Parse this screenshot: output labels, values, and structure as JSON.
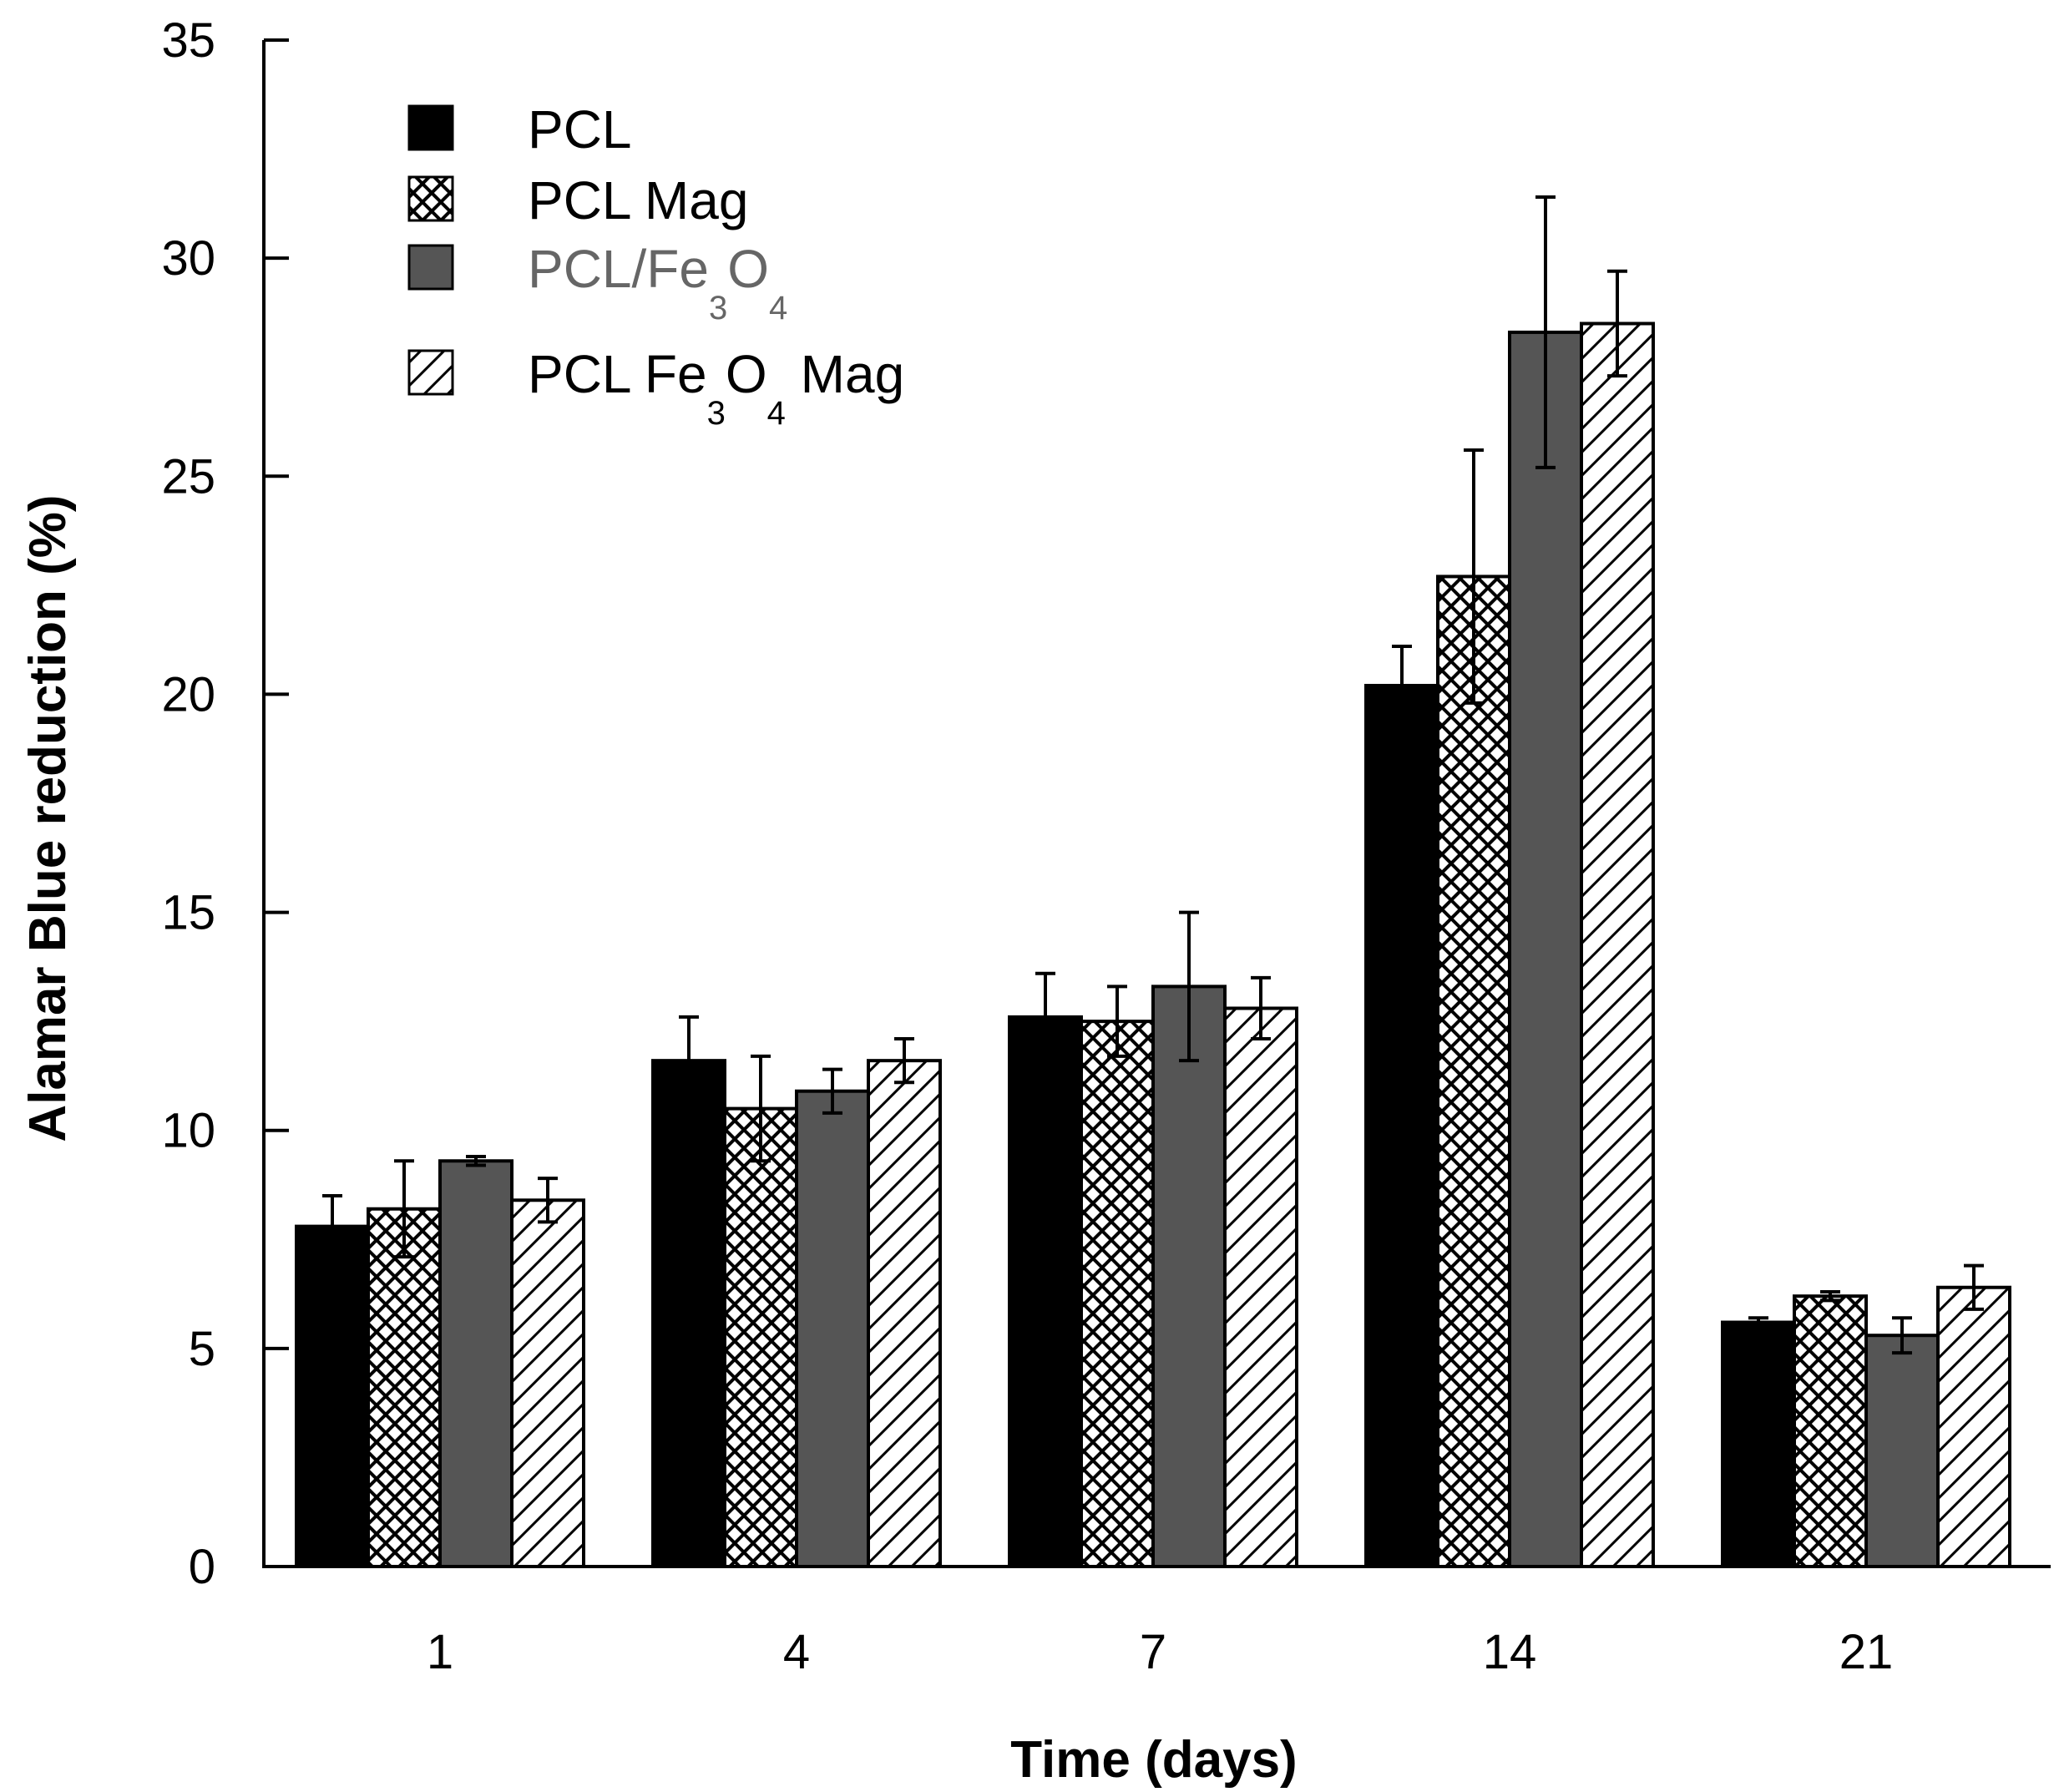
{
  "chart_data": {
    "type": "bar",
    "title": "",
    "xlabel": "Time (days)",
    "ylabel": "Alamar Blue reduction (%)",
    "ylim": [
      0,
      35
    ],
    "yticks": [
      "0",
      "5",
      "10",
      "15",
      "20",
      "25",
      "30",
      "35"
    ],
    "categories": [
      "1",
      "4",
      "7",
      "14",
      "21"
    ],
    "grid": false,
    "legend_position": "top-left",
    "series": [
      {
        "name": "PCL",
        "pattern": "solid-black",
        "color": "#000000",
        "values": [
          7.8,
          11.6,
          12.6,
          20.2,
          5.6
        ],
        "errors": [
          0.7,
          1.0,
          1.0,
          0.9,
          0.1
        ]
      },
      {
        "name": "PCL Mag",
        "pattern": "crosshatch",
        "color": "#000000",
        "values": [
          8.2,
          10.5,
          12.5,
          22.7,
          6.2
        ],
        "errors": [
          1.1,
          1.2,
          0.8,
          2.9,
          0.1
        ]
      },
      {
        "name": "PCL/Fe3O4",
        "pattern": "solid-gray",
        "color": "#555555",
        "values": [
          9.3,
          10.9,
          13.3,
          28.3,
          5.3
        ],
        "errors": [
          0.1,
          0.5,
          1.7,
          3.1,
          0.4
        ]
      },
      {
        "name": "PCL Fe3O4 Mag",
        "pattern": "diagonal-hatch",
        "color": "#000000",
        "values": [
          8.4,
          11.6,
          12.8,
          28.5,
          6.4
        ],
        "errors": [
          0.5,
          0.5,
          0.7,
          1.2,
          0.5
        ]
      }
    ],
    "legend": [
      {
        "main": "PCL",
        "sub1": "",
        "mid": "",
        "sub2": "",
        "tail": ""
      },
      {
        "main": "PCL Mag",
        "sub1": "",
        "mid": "",
        "sub2": "",
        "tail": ""
      },
      {
        "main": "PCL/Fe",
        "sub1": "3",
        "mid": "O",
        "sub2": "4",
        "tail": ""
      },
      {
        "main": "PCL Fe",
        "sub1": "3",
        "mid": "O",
        "sub2": "4",
        "tail": " Mag"
      }
    ]
  },
  "colors": {
    "axis": "#000000",
    "gray_bar": "#555555",
    "gray_text": "#666666"
  }
}
